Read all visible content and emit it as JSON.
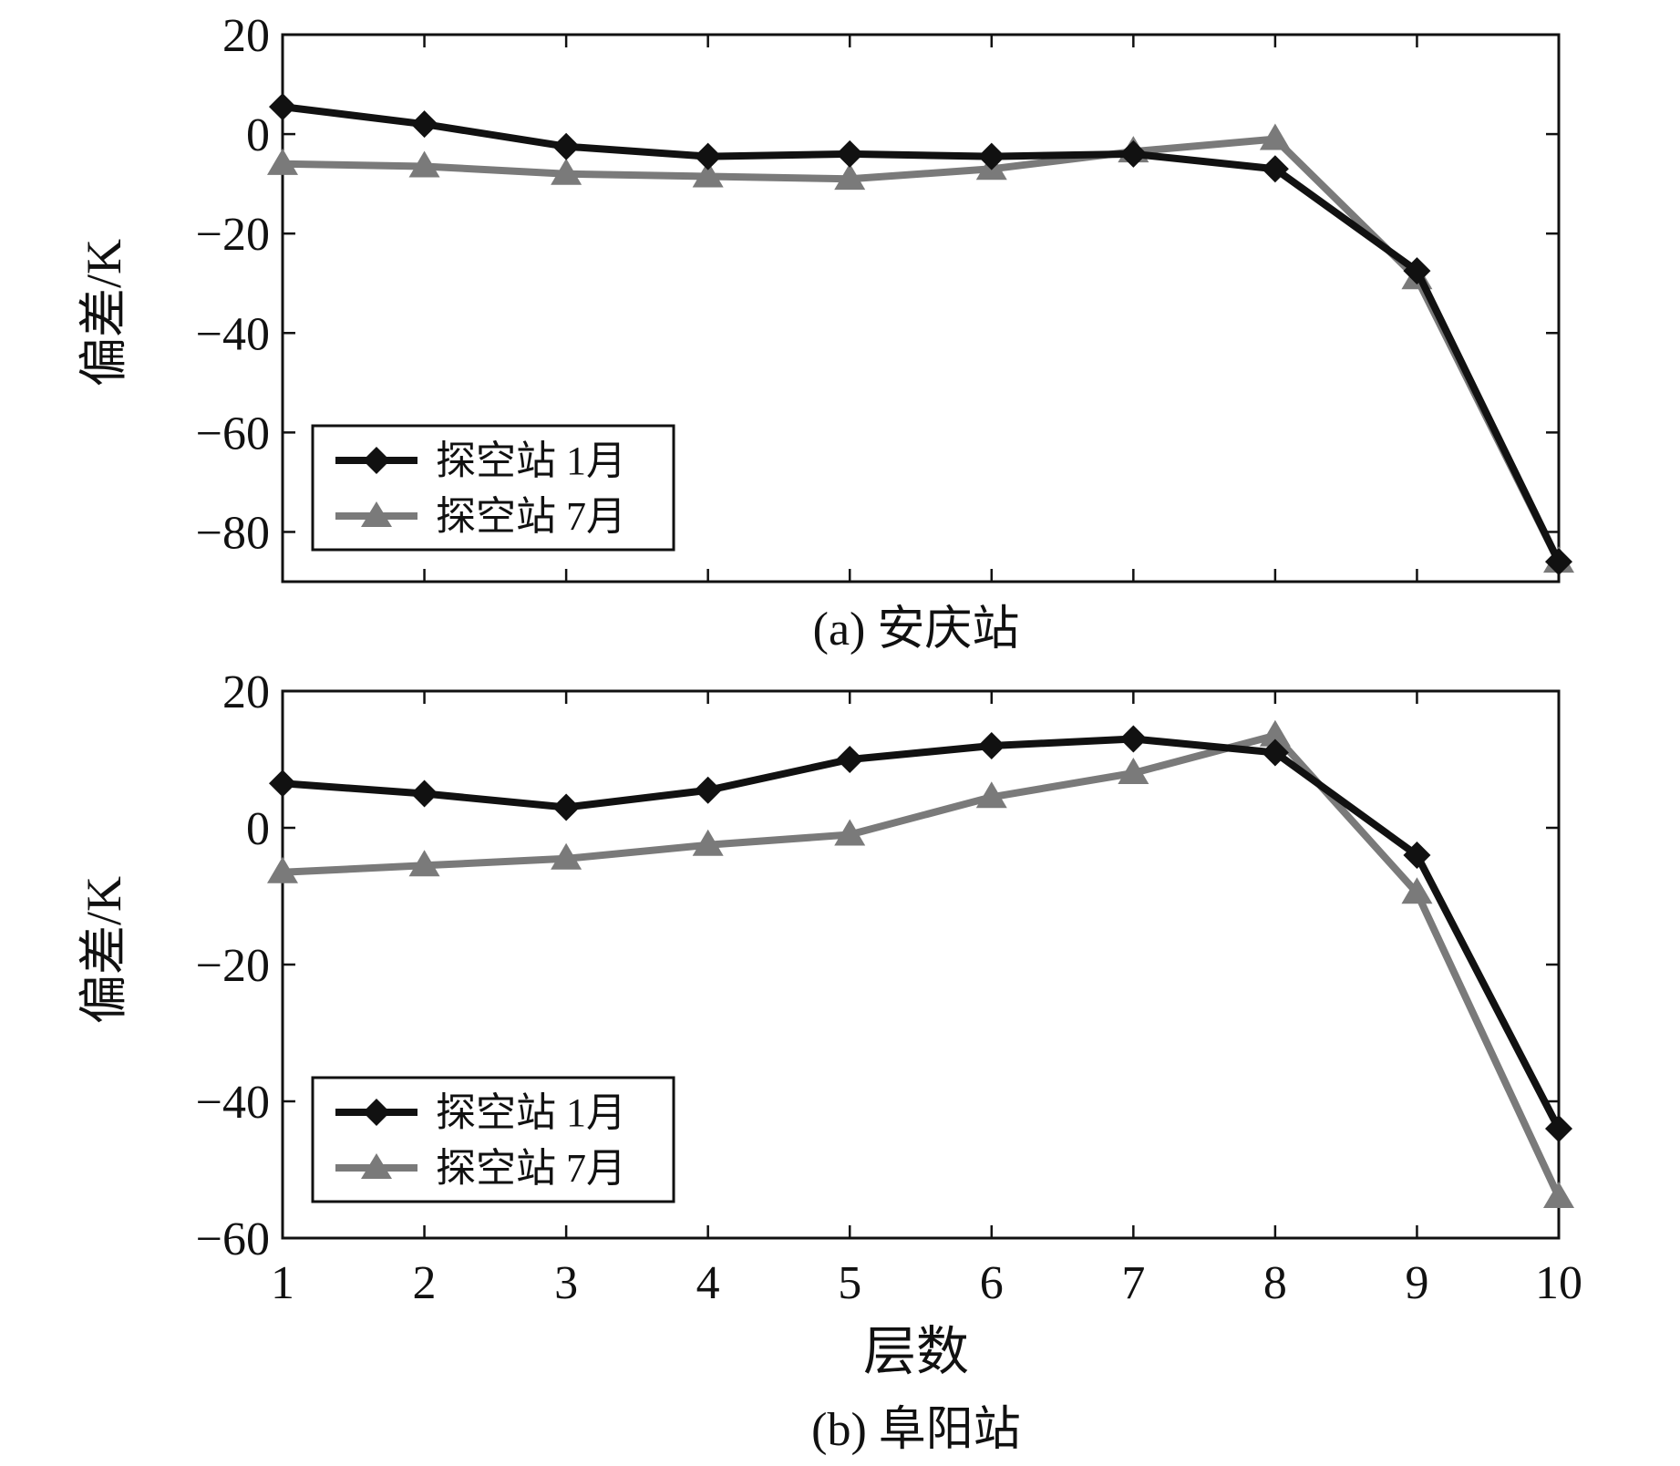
{
  "colors": {
    "jan": "#111111",
    "jul": "#7a7a7a",
    "axis": "#111111"
  },
  "chart_data": [
    {
      "type": "line",
      "caption": "(a) 安庆站",
      "xlabel": "",
      "ylabel": "偏差/K",
      "x": [
        1,
        2,
        3,
        4,
        5,
        6,
        7,
        8,
        9,
        10
      ],
      "xlim": [
        1,
        10
      ],
      "ylim": [
        -90,
        20
      ],
      "yticks": [
        20,
        0,
        -20,
        -40,
        -60,
        -80
      ],
      "ytick_labels": [
        "20",
        "0",
        "−20",
        "−40",
        "−60",
        "−80"
      ],
      "show_xtick_labels": false,
      "legend_loc": "lower-left",
      "series": [
        {
          "name": "探空站 1月",
          "marker": "diamond",
          "color_key": "jan",
          "values": [
            5.5,
            2,
            -2.5,
            -4.5,
            -4,
            -4.5,
            -4,
            -7,
            -27.5,
            -86
          ]
        },
        {
          "name": "探空站 7月",
          "marker": "triangle",
          "color_key": "jul",
          "values": [
            -6,
            -6.5,
            -8,
            -8.5,
            -9,
            -7,
            -3.5,
            -1,
            -29,
            -86
          ]
        }
      ]
    },
    {
      "type": "line",
      "caption": "(b) 阜阳站",
      "xlabel": "层数",
      "ylabel": "偏差/K",
      "x": [
        1,
        2,
        3,
        4,
        5,
        6,
        7,
        8,
        9,
        10
      ],
      "xlim": [
        1,
        10
      ],
      "ylim": [
        -60,
        20
      ],
      "yticks": [
        20,
        0,
        -20,
        -40,
        -60
      ],
      "ytick_labels": [
        "20",
        "0",
        "−20",
        "−40",
        "−60"
      ],
      "xtick_labels": [
        "1",
        "2",
        "3",
        "4",
        "5",
        "6",
        "7",
        "8",
        "9",
        "10"
      ],
      "show_xtick_labels": true,
      "legend_loc": "lower-left",
      "series": [
        {
          "name": "探空站 1月",
          "marker": "diamond",
          "color_key": "jan",
          "values": [
            6.5,
            5,
            3,
            5.5,
            10,
            12,
            13,
            11,
            -4,
            -44
          ]
        },
        {
          "name": "探空站 7月",
          "marker": "triangle",
          "color_key": "jul",
          "values": [
            -6.5,
            -5.5,
            -4.5,
            -2.5,
            -1,
            4.5,
            8,
            13.5,
            -9.5,
            -54
          ]
        }
      ]
    }
  ]
}
